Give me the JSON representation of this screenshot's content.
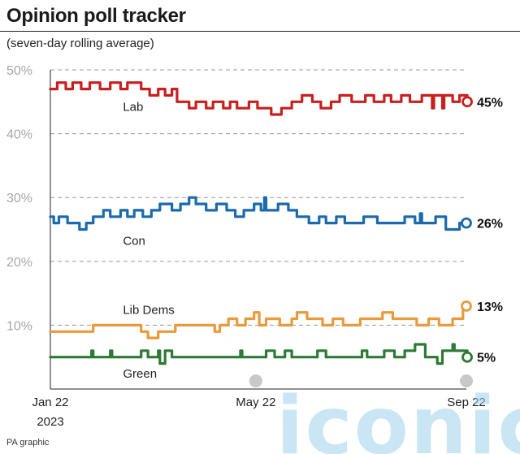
{
  "title": "Opinion poll tracker",
  "subtitle": "(seven-day rolling average)",
  "source": "PA graphic",
  "watermark": "iconic",
  "chart_data": {
    "type": "line",
    "ylim": [
      0,
      50
    ],
    "yticks": [
      10,
      20,
      30,
      40,
      50
    ],
    "ytick_labels": [
      "10%",
      "20%",
      "30%",
      "40%",
      "50%"
    ],
    "xtick_labels": [
      {
        "label": "Jan 22",
        "sub": "2023",
        "t": 0
      },
      {
        "label": "May 22",
        "sub": "",
        "t": 120
      },
      {
        "label": "Sep 22",
        "sub": "",
        "t": 243
      }
    ],
    "x_start": "2023-01-22",
    "x_end": "2023-09-22",
    "grid": "dashed-horizontal",
    "series": [
      {
        "name": "Lab",
        "color": "#c8201f",
        "final_label": "45%",
        "points": [
          [
            0,
            47
          ],
          [
            3,
            47
          ],
          [
            4,
            48
          ],
          [
            8,
            48
          ],
          [
            9,
            47
          ],
          [
            12,
            47
          ],
          [
            13,
            48
          ],
          [
            17,
            48
          ],
          [
            18,
            47
          ],
          [
            22,
            47
          ],
          [
            23,
            48
          ],
          [
            28,
            48
          ],
          [
            29,
            47
          ],
          [
            34,
            47
          ],
          [
            35,
            48
          ],
          [
            40,
            48
          ],
          [
            41,
            47
          ],
          [
            44,
            47
          ],
          [
            45,
            48
          ],
          [
            52,
            48
          ],
          [
            53,
            47
          ],
          [
            57,
            47
          ],
          [
            58,
            46
          ],
          [
            62,
            46
          ],
          [
            63,
            47
          ],
          [
            66,
            47
          ],
          [
            67,
            46
          ],
          [
            70,
            46
          ],
          [
            71,
            47
          ],
          [
            73,
            47
          ],
          [
            74,
            45
          ],
          [
            80,
            45
          ],
          [
            81,
            44
          ],
          [
            84,
            44
          ],
          [
            85,
            45
          ],
          [
            90,
            45
          ],
          [
            91,
            44
          ],
          [
            94,
            44
          ],
          [
            95,
            45
          ],
          [
            100,
            45
          ],
          [
            101,
            44
          ],
          [
            104,
            44
          ],
          [
            105,
            45
          ],
          [
            108,
            45
          ],
          [
            109,
            44
          ],
          [
            115,
            44
          ],
          [
            116,
            45
          ],
          [
            120,
            45
          ],
          [
            121,
            44
          ],
          [
            128,
            44
          ],
          [
            129,
            43
          ],
          [
            134,
            43
          ],
          [
            135,
            44
          ],
          [
            140,
            44
          ],
          [
            141,
            45
          ],
          [
            146,
            45
          ],
          [
            147,
            46
          ],
          [
            152,
            46
          ],
          [
            153,
            45
          ],
          [
            157,
            45
          ],
          [
            158,
            44
          ],
          [
            163,
            44
          ],
          [
            164,
            45
          ],
          [
            168,
            45
          ],
          [
            169,
            46
          ],
          [
            175,
            46
          ],
          [
            176,
            45
          ],
          [
            183,
            45
          ],
          [
            184,
            46
          ],
          [
            188,
            46
          ],
          [
            189,
            45
          ],
          [
            194,
            45
          ],
          [
            195,
            46
          ],
          [
            198,
            46
          ],
          [
            199,
            45
          ],
          [
            204,
            45
          ],
          [
            205,
            46
          ],
          [
            209,
            46
          ],
          [
            210,
            45
          ],
          [
            216,
            45
          ],
          [
            217,
            46
          ],
          [
            222,
            46
          ],
          [
            223,
            44
          ],
          [
            224,
            46
          ],
          [
            228,
            46
          ],
          [
            229,
            44
          ],
          [
            230,
            46
          ],
          [
            234,
            46
          ],
          [
            235,
            45
          ],
          [
            238,
            45
          ],
          [
            239,
            46
          ],
          [
            243,
            46
          ],
          [
            243.5,
            45
          ]
        ]
      },
      {
        "name": "Con",
        "color": "#1a6aad",
        "final_label": "26%",
        "points": [
          [
            0,
            27
          ],
          [
            2,
            26
          ],
          [
            4,
            26
          ],
          [
            5,
            27
          ],
          [
            9,
            27
          ],
          [
            10,
            26
          ],
          [
            16,
            26
          ],
          [
            17,
            25
          ],
          [
            20,
            25
          ],
          [
            21,
            26
          ],
          [
            24,
            26
          ],
          [
            25,
            27
          ],
          [
            30,
            27
          ],
          [
            31,
            28
          ],
          [
            34,
            28
          ],
          [
            35,
            27
          ],
          [
            40,
            27
          ],
          [
            41,
            28
          ],
          [
            44,
            28
          ],
          [
            45,
            27
          ],
          [
            48,
            27
          ],
          [
            49,
            28
          ],
          [
            53,
            28
          ],
          [
            54,
            27
          ],
          [
            58,
            27
          ],
          [
            59,
            28
          ],
          [
            63,
            28
          ],
          [
            64,
            29
          ],
          [
            70,
            29
          ],
          [
            71,
            28
          ],
          [
            75,
            28
          ],
          [
            76,
            29
          ],
          [
            80,
            29
          ],
          [
            81,
            30
          ],
          [
            84,
            30
          ],
          [
            85,
            29
          ],
          [
            90,
            29
          ],
          [
            91,
            28
          ],
          [
            96,
            28
          ],
          [
            97,
            29
          ],
          [
            102,
            29
          ],
          [
            103,
            28
          ],
          [
            107,
            28
          ],
          [
            108,
            27
          ],
          [
            112,
            27
          ],
          [
            113,
            28
          ],
          [
            118,
            28
          ],
          [
            119,
            29
          ],
          [
            122,
            29
          ],
          [
            123,
            28
          ],
          [
            125,
            30
          ],
          [
            126,
            28
          ],
          [
            132,
            28
          ],
          [
            133,
            29
          ],
          [
            138,
            29
          ],
          [
            139,
            28
          ],
          [
            143,
            28
          ],
          [
            144,
            27
          ],
          [
            150,
            27
          ],
          [
            151,
            26
          ],
          [
            156,
            26
          ],
          [
            157,
            27
          ],
          [
            160,
            27
          ],
          [
            161,
            26
          ],
          [
            166,
            26
          ],
          [
            167,
            27
          ],
          [
            171,
            27
          ],
          [
            172,
            26
          ],
          [
            182,
            26
          ],
          [
            183,
            27
          ],
          [
            190,
            27
          ],
          [
            191,
            26
          ],
          [
            206,
            26
          ],
          [
            207,
            27
          ],
          [
            212,
            27
          ],
          [
            213,
            26
          ],
          [
            215,
            26
          ],
          [
            216,
            27.5
          ],
          [
            217,
            26
          ],
          [
            224,
            26
          ],
          [
            225,
            27
          ],
          [
            230,
            27
          ],
          [
            231,
            25
          ],
          [
            238,
            25
          ],
          [
            239,
            26
          ],
          [
            243,
            26
          ]
        ]
      },
      {
        "name": "Lib Dems",
        "color": "#e89a3c",
        "final_label": "13%",
        "points": [
          [
            0,
            9
          ],
          [
            24,
            9
          ],
          [
            25,
            10
          ],
          [
            52,
            10
          ],
          [
            53,
            9
          ],
          [
            56,
            9
          ],
          [
            57,
            8
          ],
          [
            62,
            8
          ],
          [
            63,
            9
          ],
          [
            72,
            9
          ],
          [
            73,
            10
          ],
          [
            95,
            10
          ],
          [
            96,
            9
          ],
          [
            98,
            9
          ],
          [
            99,
            10
          ],
          [
            103,
            10
          ],
          [
            104,
            11
          ],
          [
            108,
            11
          ],
          [
            109,
            10
          ],
          [
            113,
            10
          ],
          [
            114,
            11
          ],
          [
            118,
            11
          ],
          [
            119,
            12
          ],
          [
            121,
            12
          ],
          [
            122,
            10
          ],
          [
            125,
            10
          ],
          [
            126,
            11
          ],
          [
            133,
            11
          ],
          [
            134,
            10
          ],
          [
            140,
            10
          ],
          [
            141,
            11
          ],
          [
            143,
            11
          ],
          [
            144,
            12
          ],
          [
            149,
            12
          ],
          [
            150,
            11
          ],
          [
            158,
            11
          ],
          [
            159,
            10
          ],
          [
            164,
            10
          ],
          [
            165,
            11
          ],
          [
            170,
            11
          ],
          [
            171,
            10
          ],
          [
            180,
            10
          ],
          [
            181,
            11
          ],
          [
            193,
            11
          ],
          [
            194,
            12
          ],
          [
            199,
            12
          ],
          [
            200,
            11
          ],
          [
            213,
            11
          ],
          [
            214,
            10
          ],
          [
            220,
            10
          ],
          [
            221,
            11
          ],
          [
            226,
            11
          ],
          [
            227,
            10
          ],
          [
            234,
            10
          ],
          [
            235,
            11
          ],
          [
            240,
            11
          ],
          [
            241,
            13
          ],
          [
            243,
            13
          ]
        ]
      },
      {
        "name": "Green",
        "color": "#2d7a34",
        "final_label": "5%",
        "points": [
          [
            0,
            5
          ],
          [
            23,
            5
          ],
          [
            24,
            6
          ],
          [
            25,
            5
          ],
          [
            34,
            5
          ],
          [
            35,
            6
          ],
          [
            36,
            5
          ],
          [
            52,
            5
          ],
          [
            53,
            6
          ],
          [
            56,
            6
          ],
          [
            57,
            5
          ],
          [
            62,
            5
          ],
          [
            63,
            6
          ],
          [
            64,
            4
          ],
          [
            66,
            4
          ],
          [
            67,
            6
          ],
          [
            70,
            6
          ],
          [
            71,
            5
          ],
          [
            110,
            5
          ],
          [
            111,
            6
          ],
          [
            112,
            5
          ],
          [
            125,
            5
          ],
          [
            126,
            6
          ],
          [
            130,
            6
          ],
          [
            131,
            5
          ],
          [
            136,
            5
          ],
          [
            137,
            6
          ],
          [
            140,
            6
          ],
          [
            141,
            5
          ],
          [
            155,
            5
          ],
          [
            156,
            6
          ],
          [
            160,
            6
          ],
          [
            161,
            5
          ],
          [
            181,
            5
          ],
          [
            182,
            6
          ],
          [
            184,
            6
          ],
          [
            185,
            5
          ],
          [
            194,
            5
          ],
          [
            195,
            6
          ],
          [
            200,
            6
          ],
          [
            201,
            5
          ],
          [
            206,
            5
          ],
          [
            207,
            6
          ],
          [
            212,
            6
          ],
          [
            213,
            7
          ],
          [
            218,
            7
          ],
          [
            219,
            5
          ],
          [
            225,
            5
          ],
          [
            226,
            4
          ],
          [
            228,
            4
          ],
          [
            229,
            6
          ],
          [
            234,
            6
          ],
          [
            235,
            7
          ],
          [
            236,
            6
          ],
          [
            243,
            6
          ],
          [
            243.5,
            5
          ]
        ]
      }
    ],
    "series_labels": [
      {
        "series": "Lab",
        "text": "Lab",
        "t": 22,
        "v": 44.2
      },
      {
        "series": "Con",
        "text": "Con",
        "t": 22,
        "v": 23.2
      },
      {
        "series": "Lib Dems",
        "text": "Lib Dems",
        "t": 22,
        "v": 12.4
      },
      {
        "series": "Green",
        "text": "Green",
        "t": 22,
        "v": 2.4
      }
    ]
  }
}
